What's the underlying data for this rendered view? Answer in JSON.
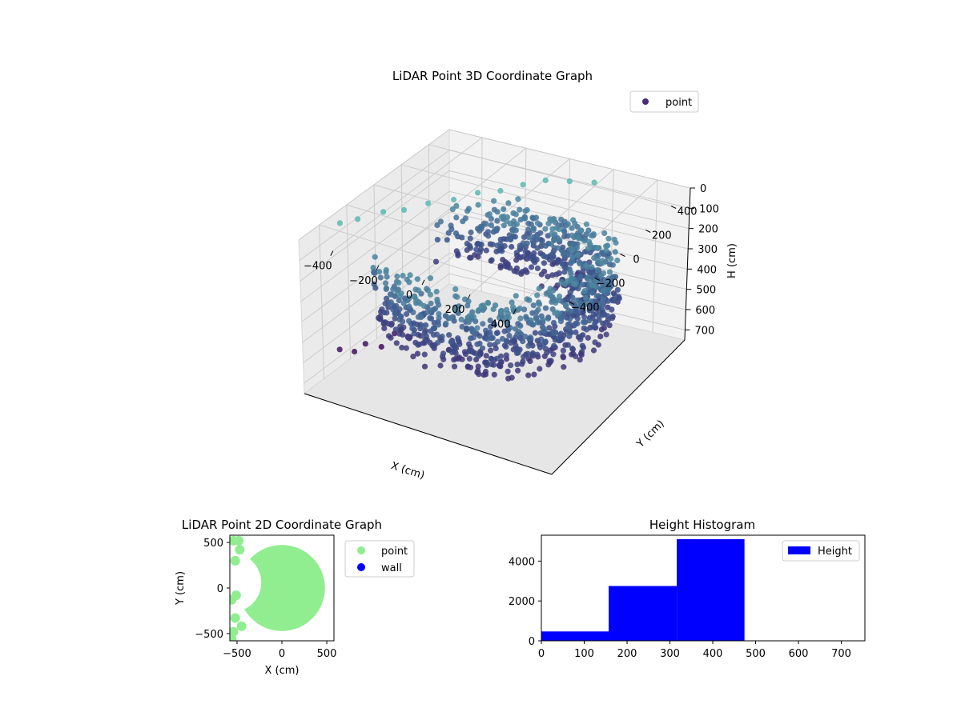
{
  "colors": {
    "point_3d_dark": "#440154",
    "point_3d_mid": "#3b528b",
    "point_3d_light": "#5ec4b6",
    "point_2d": "#90ee90",
    "wall_2d": "#0000ff",
    "histogram_bar": "#0000ff",
    "pane_face": "#f2f2f2",
    "grid": "#cccccc"
  },
  "chart_data": [
    {
      "type": "scatter",
      "subtype": "3d-scatter",
      "title": "LiDAR Point 3D Coordinate Graph",
      "xlabel": "X (cm)",
      "ylabel": "Y (cm)",
      "zlabel": "H (cm)",
      "xlim": [
        -550,
        550
      ],
      "ylim": [
        -550,
        550
      ],
      "zlim": [
        0,
        750
      ],
      "z_inverted": true,
      "x_ticks": [
        "−400",
        "−200",
        "0",
        "200",
        "400"
      ],
      "y_ticks": [
        "−400",
        "−200",
        "0",
        "200",
        "400"
      ],
      "z_ticks": [
        "0",
        "100",
        "200",
        "300",
        "400",
        "500",
        "600",
        "700"
      ],
      "x_tick_values": [
        -400,
        -200,
        0,
        200,
        400
      ],
      "y_tick_values": [
        -400,
        -200,
        0,
        200,
        400
      ],
      "z_tick_values": [
        0,
        100,
        200,
        300,
        400,
        500,
        600,
        700
      ],
      "legend": {
        "entries": [
          "point"
        ],
        "position": "top-right"
      },
      "grid": true,
      "colormap": "viridis",
      "series": [
        {
          "name": "point",
          "shape": "ring-with-inner-cut",
          "outer_radius": 480,
          "inner_radius": 280,
          "inner_center": [
            -230,
            0
          ],
          "height_range": [
            180,
            480
          ],
          "sparse_points": [
            {
              "x": -520,
              "y": -300,
              "h": 30
            },
            {
              "x": -490,
              "y": -220,
              "h": 40
            },
            {
              "x": -430,
              "y": -130,
              "h": 30
            },
            {
              "x": -380,
              "y": -60,
              "h": 40
            },
            {
              "x": -320,
              "y": 20,
              "h": 30
            },
            {
              "x": -260,
              "y": 110,
              "h": 40
            },
            {
              "x": -200,
              "y": 190,
              "h": 30
            },
            {
              "x": -140,
              "y": 260,
              "h": 40
            },
            {
              "x": -80,
              "y": 330,
              "h": 30
            },
            {
              "x": -20,
              "y": 400,
              "h": 30
            },
            {
              "x": 60,
              "y": 450,
              "h": 40
            },
            {
              "x": 160,
              "y": 470,
              "h": 30
            },
            {
              "x": -500,
              "y": -360,
              "h": 610
            },
            {
              "x": -470,
              "y": -300,
              "h": 640
            },
            {
              "x": -450,
              "y": -250,
              "h": 620
            },
            {
              "x": -420,
              "y": -180,
              "h": 660
            },
            {
              "x": -390,
              "y": -130,
              "h": 610
            },
            {
              "x": -350,
              "y": -80,
              "h": 640
            }
          ]
        }
      ]
    },
    {
      "type": "scatter",
      "title": "LiDAR Point 2D Coordinate Graph",
      "xlabel": "X (cm)",
      "ylabel": "Y (cm)",
      "xlim": [
        -580,
        580
      ],
      "ylim": [
        -580,
        580
      ],
      "x_ticks": [
        "−500",
        "0",
        "500"
      ],
      "y_ticks": [
        "500",
        "0",
        "−500"
      ],
      "x_tick_values": [
        -500,
        0,
        500
      ],
      "y_tick_values": [
        500,
        0,
        -500
      ],
      "legend": {
        "entries": [
          "point",
          "wall"
        ],
        "position": "outside-right"
      },
      "series": [
        {
          "name": "point",
          "shape": "disc-with-left-notch",
          "outer_radius": 480,
          "notch_center": [
            -560,
            60
          ],
          "notch_radius": 330
        },
        {
          "name": "wall",
          "values": []
        }
      ]
    },
    {
      "type": "bar",
      "subtype": "histogram",
      "title": "Height Histogram",
      "xlabel": "",
      "ylabel": "",
      "xlim": [
        0,
        755
      ],
      "ylim": [
        0,
        5300
      ],
      "x_ticks": [
        "0",
        "100",
        "200",
        "300",
        "400",
        "500",
        "600",
        "700"
      ],
      "y_ticks": [
        "0",
        "2000",
        "4000"
      ],
      "x_tick_values": [
        0,
        100,
        200,
        300,
        400,
        500,
        600,
        700
      ],
      "y_tick_values": [
        0,
        2000,
        4000
      ],
      "bins": [
        {
          "start": 0,
          "end": 157,
          "count": 470
        },
        {
          "start": 157,
          "end": 316,
          "count": 2750
        },
        {
          "start": 316,
          "end": 474,
          "count": 5100
        },
        {
          "start": 474,
          "end": 755,
          "count": 20
        }
      ],
      "legend": {
        "entries": [
          "Height"
        ],
        "position": "top-right"
      }
    }
  ]
}
